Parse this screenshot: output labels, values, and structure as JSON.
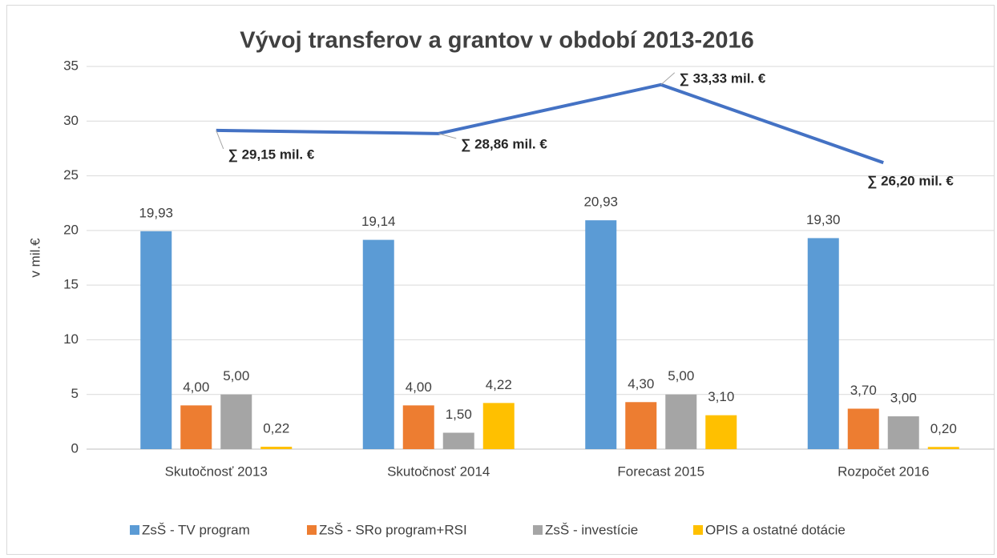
{
  "chart_data": {
    "type": "bar",
    "title": "Vývoj transferov a grantov v období 2013-2016",
    "y_label": "v mil.€",
    "categories": [
      "Skutočnosť 2013",
      "Skutočnosť 2014",
      "Forecast 2015",
      "Rozpočet 2016"
    ],
    "series": [
      {
        "name": "ZsŠ - TV program",
        "color": "#5b9bd5",
        "values": [
          19.93,
          19.14,
          20.93,
          19.3
        ],
        "value_labels": [
          "19,93",
          "19,14",
          "20,93",
          "19,30"
        ]
      },
      {
        "name": "ZsŠ - SRo program+RSI",
        "color": "#ed7d31",
        "values": [
          4.0,
          4.0,
          4.3,
          3.7
        ],
        "value_labels": [
          "4,00",
          "4,00",
          "4,30",
          "3,70"
        ]
      },
      {
        "name": "ZsŠ - investície",
        "color": "#a5a5a5",
        "values": [
          5.0,
          1.5,
          5.0,
          3.0
        ],
        "value_labels": [
          "5,00",
          "1,50",
          "5,00",
          "3,00"
        ]
      },
      {
        "name": "OPIS a ostatné dotácie",
        "color": "#ffc000",
        "values": [
          0.22,
          4.22,
          3.1,
          0.2
        ],
        "value_labels": [
          "0,22",
          "4,22",
          "3,10",
          "0,20"
        ]
      }
    ],
    "line": {
      "type": "line",
      "color": "#4472c4",
      "values": [
        29.15,
        28.86,
        33.33,
        26.2
      ],
      "value_labels": [
        "∑ 29,15  mil. €",
        "∑ 28,86  mil. €",
        "∑ 33,33  mil. €",
        "∑ 26,20  mil. €"
      ]
    },
    "ylim": [
      0,
      35
    ],
    "yticks": [
      0,
      5,
      10,
      15,
      20,
      25,
      30,
      35
    ],
    "grid": true,
    "legend": "bottom"
  }
}
